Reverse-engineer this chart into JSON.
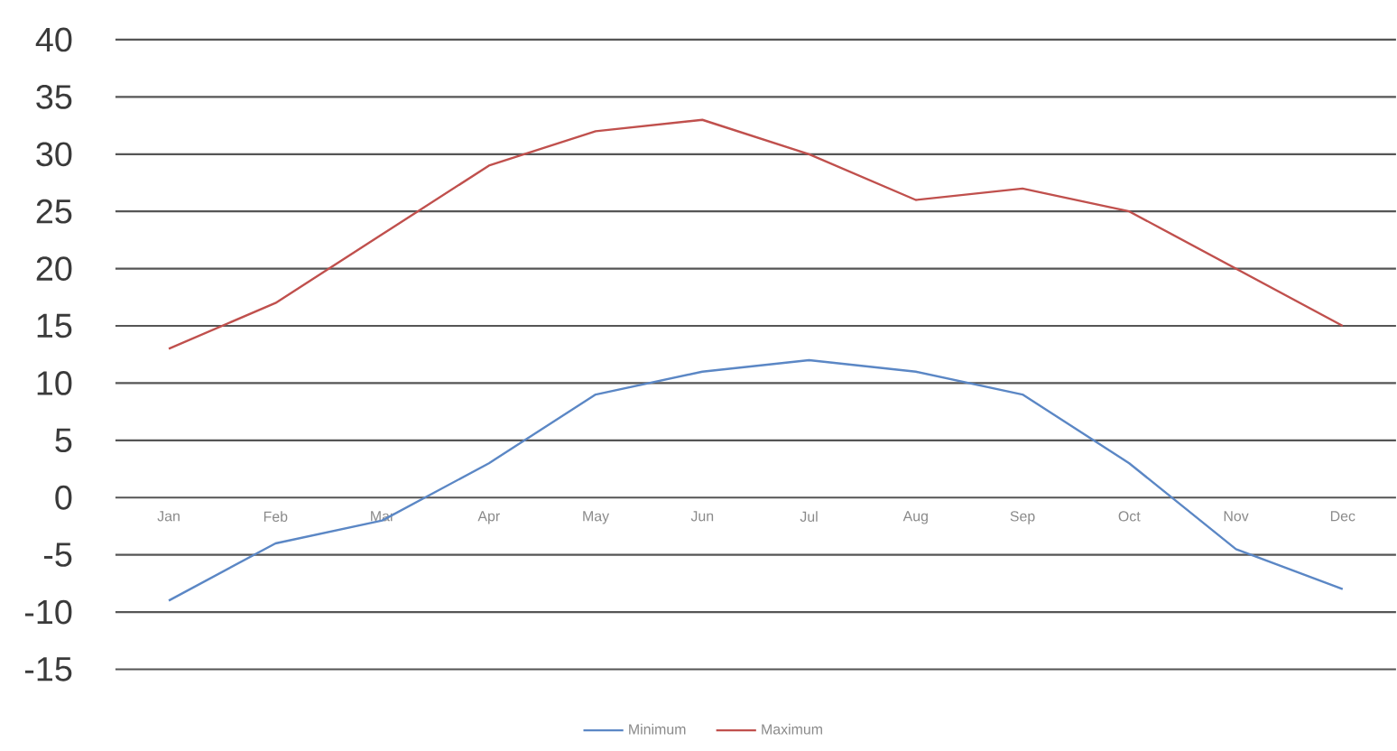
{
  "chart_data": {
    "type": "line",
    "categories": [
      "Jan",
      "Feb",
      "Mar",
      "Apr",
      "May",
      "Jun",
      "Jul",
      "Aug",
      "Sep",
      "Oct",
      "Nov",
      "Dec"
    ],
    "series": [
      {
        "name": "Minimum",
        "color": "#5b87c5",
        "values": [
          -9,
          -4,
          -2,
          3,
          9,
          11,
          12,
          11,
          9,
          3,
          -4.5,
          -8
        ]
      },
      {
        "name": "Maximum",
        "color": "#c0504d",
        "values": [
          13,
          17,
          23,
          29,
          32,
          33,
          30,
          26,
          27,
          25,
          20,
          15
        ]
      }
    ],
    "ylim": [
      -15,
      40
    ],
    "yticks": [
      -15,
      -10,
      -5,
      0,
      5,
      10,
      15,
      20,
      25,
      30,
      35,
      40
    ],
    "grid": "y",
    "legend": "bottom"
  }
}
